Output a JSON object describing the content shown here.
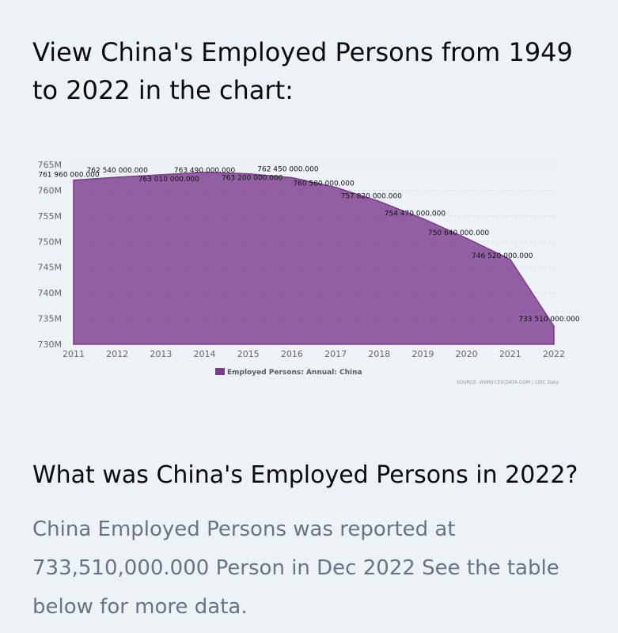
{
  "page": {
    "heading": "View China's Employed Persons from 1949 to 2022 in the chart:",
    "question": "What was China's Employed Persons in 2022?",
    "answer": "China Employed Persons was reported at 733,510,000.000 Person in Dec 2022 See the table below for more data."
  },
  "chart_data": {
    "type": "area",
    "x": [
      "2011",
      "2012",
      "2013",
      "2014",
      "2015",
      "2016",
      "2017",
      "2018",
      "2019",
      "2020",
      "2021",
      "2022"
    ],
    "series": [
      {
        "name": "Employed Persons: Annual: China",
        "color": "#7b3b8c",
        "values": [
          761960000,
          762540000,
          763010000,
          763490000,
          763200000,
          762450000,
          760580000,
          757820000,
          754470000,
          750640000,
          746520000,
          733510000
        ],
        "labels": [
          "761 960 000.000",
          "762 540 000.000",
          "763 010 000.000",
          "763 490 000.000",
          "763 200 000.000",
          "762 450 000.000",
          "760 580 000.000",
          "757 820 000.000",
          "754 470 000.000",
          "750 640 000.000",
          "746 520 000.000",
          "733 510 000.000"
        ]
      }
    ],
    "yticks": [
      "765M",
      "760M",
      "755M",
      "750M",
      "745M",
      "740M",
      "735M",
      "730M"
    ],
    "ylim": [
      730000000,
      765000000
    ],
    "grid": true,
    "legend": "bottom",
    "source": "SOURCE: WWW.CEICDATA.COM | CEIC Data"
  }
}
